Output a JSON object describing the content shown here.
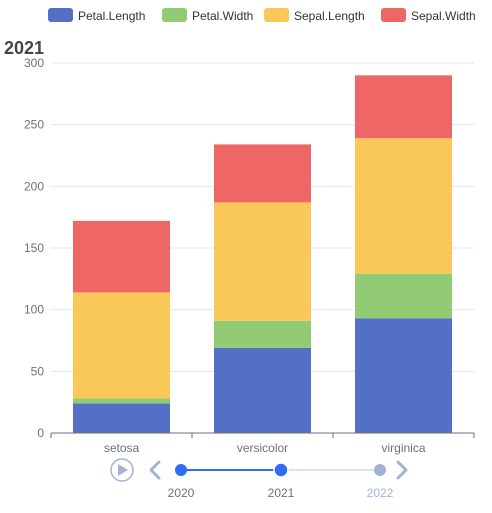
{
  "chart_data": {
    "type": "bar",
    "stacked": true,
    "title": "2021",
    "categories": [
      "setosa",
      "versicolor",
      "virginica"
    ],
    "series": [
      {
        "name": "Petal.Length",
        "color": "#5470c6",
        "values": [
          24,
          69,
          93
        ]
      },
      {
        "name": "Petal.Width",
        "color": "#91cc75",
        "values": [
          4,
          22,
          36
        ]
      },
      {
        "name": "Sepal.Length",
        "color": "#fac858",
        "values": [
          86,
          96,
          110
        ]
      },
      {
        "name": "Sepal.Width",
        "color": "#ee6666",
        "values": [
          58,
          47,
          51
        ]
      }
    ],
    "ylim": [
      0,
      300
    ],
    "yticks": [
      0,
      50,
      100,
      150,
      200,
      250,
      300
    ],
    "grid": true,
    "legend_position": "top"
  },
  "timeline": {
    "years": [
      "2020",
      "2021",
      "2022"
    ],
    "current": "2021",
    "play_icon": "play-icon",
    "prev_icon": "chevron-left-icon",
    "next_icon": "chevron-right-icon",
    "active_color": "#316bf3",
    "inactive_color": "#a4b1d7"
  }
}
